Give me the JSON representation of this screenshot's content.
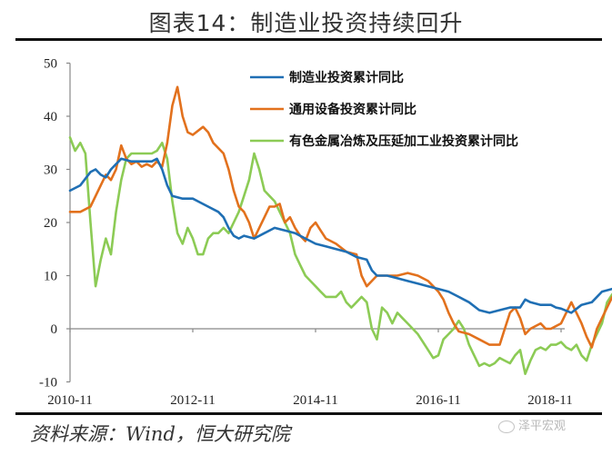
{
  "header": {
    "title": "图表14：制造业投资持续回升"
  },
  "footer": {
    "source": "资料来源：Wind，恒大研究院",
    "watermark": "泽平宏观"
  },
  "colors": {
    "blue": "#1F6FB4",
    "orange": "#E2711D",
    "green": "#8CCB55",
    "axis": "#888888"
  },
  "chart_data": {
    "type": "line",
    "title": "图表14：制造业投资持续回升",
    "xlabel": "",
    "ylabel": "",
    "ylim": [
      -10,
      50
    ],
    "yticks": [
      -10,
      0,
      10,
      20,
      30,
      40,
      50
    ],
    "xticks": [
      "2010-11",
      "2012-11",
      "2014-11",
      "2016-11",
      "2018-11"
    ],
    "x_range": [
      "2010-11",
      "2018-11"
    ],
    "grid": false,
    "legend_position": "upper right (inside)",
    "x_unit": "months since 2010-11",
    "series": [
      {
        "name": "制造业投资累计同比",
        "color": "#1F6FB4",
        "points": [
          [
            0,
            26
          ],
          [
            2,
            27
          ],
          [
            4,
            29.5
          ],
          [
            5,
            30
          ],
          [
            6,
            29
          ],
          [
            7,
            28.5
          ],
          [
            8,
            30
          ],
          [
            10,
            32
          ],
          [
            12,
            31.5
          ],
          [
            14,
            31.5
          ],
          [
            16,
            31.5
          ],
          [
            17,
            32
          ],
          [
            18,
            30
          ],
          [
            19,
            27
          ],
          [
            20,
            25
          ],
          [
            22,
            24.5
          ],
          [
            24,
            24.5
          ],
          [
            25,
            24
          ],
          [
            27,
            23
          ],
          [
            29,
            22
          ],
          [
            30,
            21
          ],
          [
            31,
            19
          ],
          [
            32,
            17.5
          ],
          [
            33,
            17
          ],
          [
            34,
            17.5
          ],
          [
            36,
            17
          ],
          [
            38,
            18
          ],
          [
            40,
            19
          ],
          [
            42,
            18.5
          ],
          [
            44,
            18
          ],
          [
            46,
            17
          ],
          [
            48,
            16
          ],
          [
            50,
            15.5
          ],
          [
            52,
            15
          ],
          [
            54,
            14.5
          ],
          [
            56,
            13.5
          ],
          [
            58,
            13
          ],
          [
            59,
            11
          ],
          [
            60,
            10
          ],
          [
            62,
            10
          ],
          [
            64,
            9.5
          ],
          [
            66,
            9
          ],
          [
            68,
            8.5
          ],
          [
            70,
            8
          ],
          [
            72,
            7.5
          ],
          [
            74,
            7
          ],
          [
            76,
            6
          ],
          [
            78,
            5
          ],
          [
            80,
            3.5
          ],
          [
            82,
            3
          ],
          [
            84,
            3.5
          ],
          [
            86,
            4
          ],
          [
            88,
            4
          ],
          [
            89,
            5.5
          ],
          [
            90,
            5
          ],
          [
            92,
            4.5
          ],
          [
            94,
            4.5
          ],
          [
            95,
            4
          ]
        ],
        "points_tail": [
          [
            96,
            3.8
          ],
          [
            98,
            3
          ],
          [
            100,
            4.5
          ],
          [
            102,
            5
          ],
          [
            104,
            7
          ],
          [
            106,
            7.5
          ],
          [
            108,
            8.5
          ],
          [
            110,
            9.5
          ]
        ]
      },
      {
        "name": "通用设备投资累计同比",
        "color": "#E2711D",
        "points": [
          [
            0,
            22
          ],
          [
            2,
            22
          ],
          [
            4,
            23
          ],
          [
            6,
            27
          ],
          [
            7,
            29
          ],
          [
            8,
            28
          ],
          [
            9,
            30
          ],
          [
            10,
            34.5
          ],
          [
            11,
            32
          ],
          [
            12,
            31
          ],
          [
            13,
            31.5
          ],
          [
            14,
            30.5
          ],
          [
            15,
            31
          ],
          [
            16,
            30.5
          ],
          [
            17,
            31.5
          ],
          [
            18,
            30.5
          ],
          [
            19,
            35
          ],
          [
            20,
            42
          ],
          [
            21,
            45.5
          ],
          [
            22,
            40
          ],
          [
            23,
            37
          ],
          [
            24,
            36.5
          ],
          [
            26,
            38
          ],
          [
            27,
            37
          ],
          [
            28,
            35
          ],
          [
            30,
            33
          ],
          [
            31,
            30
          ],
          [
            32,
            26
          ],
          [
            33,
            23
          ],
          [
            34,
            22
          ],
          [
            35,
            20
          ],
          [
            36,
            17
          ],
          [
            37,
            19
          ],
          [
            38,
            21
          ],
          [
            39,
            23
          ],
          [
            40,
            23
          ],
          [
            41,
            23.5
          ],
          [
            42,
            20
          ],
          [
            43,
            21
          ],
          [
            44,
            19
          ],
          [
            45,
            17.5
          ],
          [
            46,
            16.5
          ],
          [
            47,
            19
          ],
          [
            48,
            20
          ],
          [
            49,
            18.5
          ],
          [
            50,
            17
          ],
          [
            52,
            16
          ],
          [
            54,
            14.5
          ],
          [
            56,
            14
          ],
          [
            57,
            10
          ],
          [
            58,
            8
          ],
          [
            59,
            9
          ],
          [
            60,
            10
          ],
          [
            62,
            10
          ],
          [
            64,
            10
          ],
          [
            66,
            10.5
          ],
          [
            68,
            10
          ],
          [
            70,
            9
          ],
          [
            71,
            8
          ],
          [
            72,
            7
          ],
          [
            73,
            5.5
          ],
          [
            74,
            3
          ],
          [
            75,
            1
          ],
          [
            76,
            -0.5
          ],
          [
            78,
            -1
          ],
          [
            80,
            -2
          ],
          [
            82,
            -3
          ],
          [
            84,
            -3
          ],
          [
            85,
            0
          ],
          [
            86,
            3
          ],
          [
            87,
            4
          ],
          [
            88,
            2
          ],
          [
            89,
            -1
          ],
          [
            90,
            0
          ],
          [
            92,
            1
          ],
          [
            93,
            0
          ],
          [
            94,
            0
          ],
          [
            96,
            1
          ],
          [
            98,
            5
          ],
          [
            99,
            3
          ],
          [
            100,
            1
          ],
          [
            101,
            -1.5
          ],
          [
            102,
            -3.5
          ],
          [
            103,
            0
          ],
          [
            104,
            2
          ],
          [
            105,
            4
          ],
          [
            106,
            6
          ],
          [
            108,
            7.5
          ],
          [
            110,
            8
          ],
          [
            112,
            9.5
          ]
        ]
      },
      {
        "name": "有色金属冶炼及压延加工业投资累计同比",
        "color": "#8CCB55",
        "points": [
          [
            0,
            36
          ],
          [
            1,
            33.5
          ],
          [
            2,
            35
          ],
          [
            3,
            33
          ],
          [
            4,
            20
          ],
          [
            5,
            8
          ],
          [
            6,
            13
          ],
          [
            7,
            17
          ],
          [
            8,
            14
          ],
          [
            9,
            22
          ],
          [
            10,
            28
          ],
          [
            11,
            32
          ],
          [
            12,
            33
          ],
          [
            13,
            33
          ],
          [
            14,
            33
          ],
          [
            15,
            33
          ],
          [
            16,
            33
          ],
          [
            17,
            33.5
          ],
          [
            18,
            35
          ],
          [
            19,
            32
          ],
          [
            20,
            24
          ],
          [
            21,
            18
          ],
          [
            22,
            16
          ],
          [
            23,
            19
          ],
          [
            24,
            17
          ],
          [
            25,
            14
          ],
          [
            26,
            14
          ],
          [
            27,
            17
          ],
          [
            28,
            18
          ],
          [
            29,
            18
          ],
          [
            30,
            19
          ],
          [
            31,
            18
          ],
          [
            32,
            20
          ],
          [
            33,
            22
          ],
          [
            34,
            25
          ],
          [
            35,
            28
          ],
          [
            36,
            33
          ],
          [
            37,
            30
          ],
          [
            38,
            26
          ],
          [
            39,
            25
          ],
          [
            40,
            24
          ],
          [
            41,
            22
          ],
          [
            42,
            20
          ],
          [
            43,
            18
          ],
          [
            44,
            14
          ],
          [
            45,
            12
          ],
          [
            46,
            10
          ],
          [
            47,
            9
          ],
          [
            48,
            8
          ],
          [
            49,
            7
          ],
          [
            50,
            6
          ],
          [
            51,
            6
          ],
          [
            52,
            6
          ],
          [
            53,
            7
          ],
          [
            54,
            5
          ],
          [
            55,
            4
          ],
          [
            56,
            5
          ],
          [
            57,
            6
          ],
          [
            58,
            5
          ],
          [
            59,
            0
          ],
          [
            60,
            -2
          ],
          [
            61,
            4
          ],
          [
            62,
            3
          ],
          [
            63,
            1
          ],
          [
            64,
            3
          ],
          [
            65,
            2
          ],
          [
            66,
            1
          ],
          [
            67,
            0
          ],
          [
            68,
            -1
          ],
          [
            69,
            -2.5
          ],
          [
            70,
            -4
          ],
          [
            71,
            -5.5
          ],
          [
            72,
            -5
          ],
          [
            73,
            -2
          ],
          [
            74,
            -1
          ],
          [
            75,
            0
          ],
          [
            76,
            1.5
          ],
          [
            77,
            0
          ],
          [
            78,
            -3
          ],
          [
            79,
            -5
          ],
          [
            80,
            -7
          ],
          [
            81,
            -6.5
          ],
          [
            82,
            -7
          ],
          [
            83,
            -6.5
          ],
          [
            84,
            -5.5
          ],
          [
            85,
            -6
          ],
          [
            86,
            -6.5
          ],
          [
            87,
            -5
          ],
          [
            88,
            -4
          ],
          [
            89,
            -8.5
          ],
          [
            90,
            -6
          ],
          [
            91,
            -4
          ],
          [
            92,
            -3.5
          ],
          [
            93,
            -4
          ],
          [
            94,
            -3
          ],
          [
            95,
            -3
          ],
          [
            96,
            -2.5
          ],
          [
            97,
            -3.5
          ],
          [
            98,
            -4
          ],
          [
            99,
            -3
          ],
          [
            100,
            -5
          ],
          [
            101,
            -6
          ],
          [
            102,
            -3
          ],
          [
            104,
            1
          ],
          [
            105,
            5
          ],
          [
            106,
            6.5
          ],
          [
            107,
            3
          ],
          [
            108,
            1.5
          ],
          [
            110,
            2
          ]
        ]
      }
    ]
  }
}
